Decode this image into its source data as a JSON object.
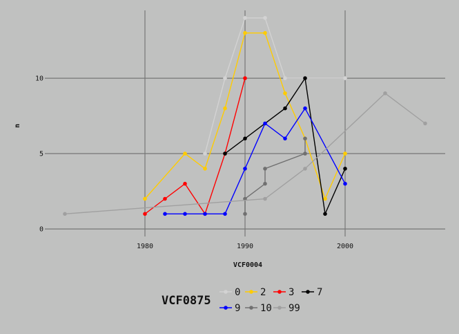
{
  "chart_data": {
    "type": "line",
    "xlabel": "VCF0004",
    "ylabel": "n",
    "xlim": [
      1970,
      2010
    ],
    "ylim": [
      -0.5,
      14.5
    ],
    "x_ticks": [
      1980,
      1990,
      2000
    ],
    "y_ticks": [
      0,
      5,
      10
    ],
    "grid": true,
    "legend": {
      "title": "VCF0875",
      "position": "bottom"
    },
    "series": [
      {
        "name": "0",
        "color": "#d3d3d3",
        "x": [
          1986,
          1988,
          1990,
          1992,
          1994,
          1996,
          2000
        ],
        "y": [
          5,
          10,
          14,
          14,
          10,
          10,
          10
        ]
      },
      {
        "name": "2",
        "color": "#ffcc00",
        "x": [
          1980,
          1984,
          1986,
          1988,
          1990,
          1992,
          1994,
          1996,
          1998,
          2000
        ],
        "y": [
          2,
          5,
          4,
          8,
          13,
          13,
          9,
          6,
          2,
          5
        ]
      },
      {
        "name": "3",
        "color": "#ff0000",
        "x": [
          1980,
          1982,
          1984,
          1986,
          1988,
          1990
        ],
        "y": [
          1,
          2,
          3,
          1,
          5,
          10
        ]
      },
      {
        "name": "7",
        "color": "#000000",
        "x": [
          1988,
          1990,
          1994,
          1996,
          1998,
          2000
        ],
        "y": [
          5,
          6,
          8,
          10,
          1,
          4
        ]
      },
      {
        "name": "9",
        "color": "#0000ff",
        "x": [
          1982,
          1984,
          1986,
          1988,
          1990,
          1992,
          1994,
          1996,
          2000
        ],
        "y": [
          1,
          1,
          1,
          1,
          4,
          7,
          6,
          8,
          3
        ]
      },
      {
        "name": "10",
        "color": "#707070",
        "x": [
          1990,
          1990,
          1992,
          1992,
          1996,
          1996
        ],
        "y": [
          1,
          2,
          3,
          4,
          5,
          6
        ]
      },
      {
        "name": "99",
        "color": "#a0a0a0",
        "x": [
          1972,
          1992,
          1996,
          2004,
          2008
        ],
        "y": [
          1,
          2,
          4,
          9,
          7
        ]
      }
    ]
  }
}
